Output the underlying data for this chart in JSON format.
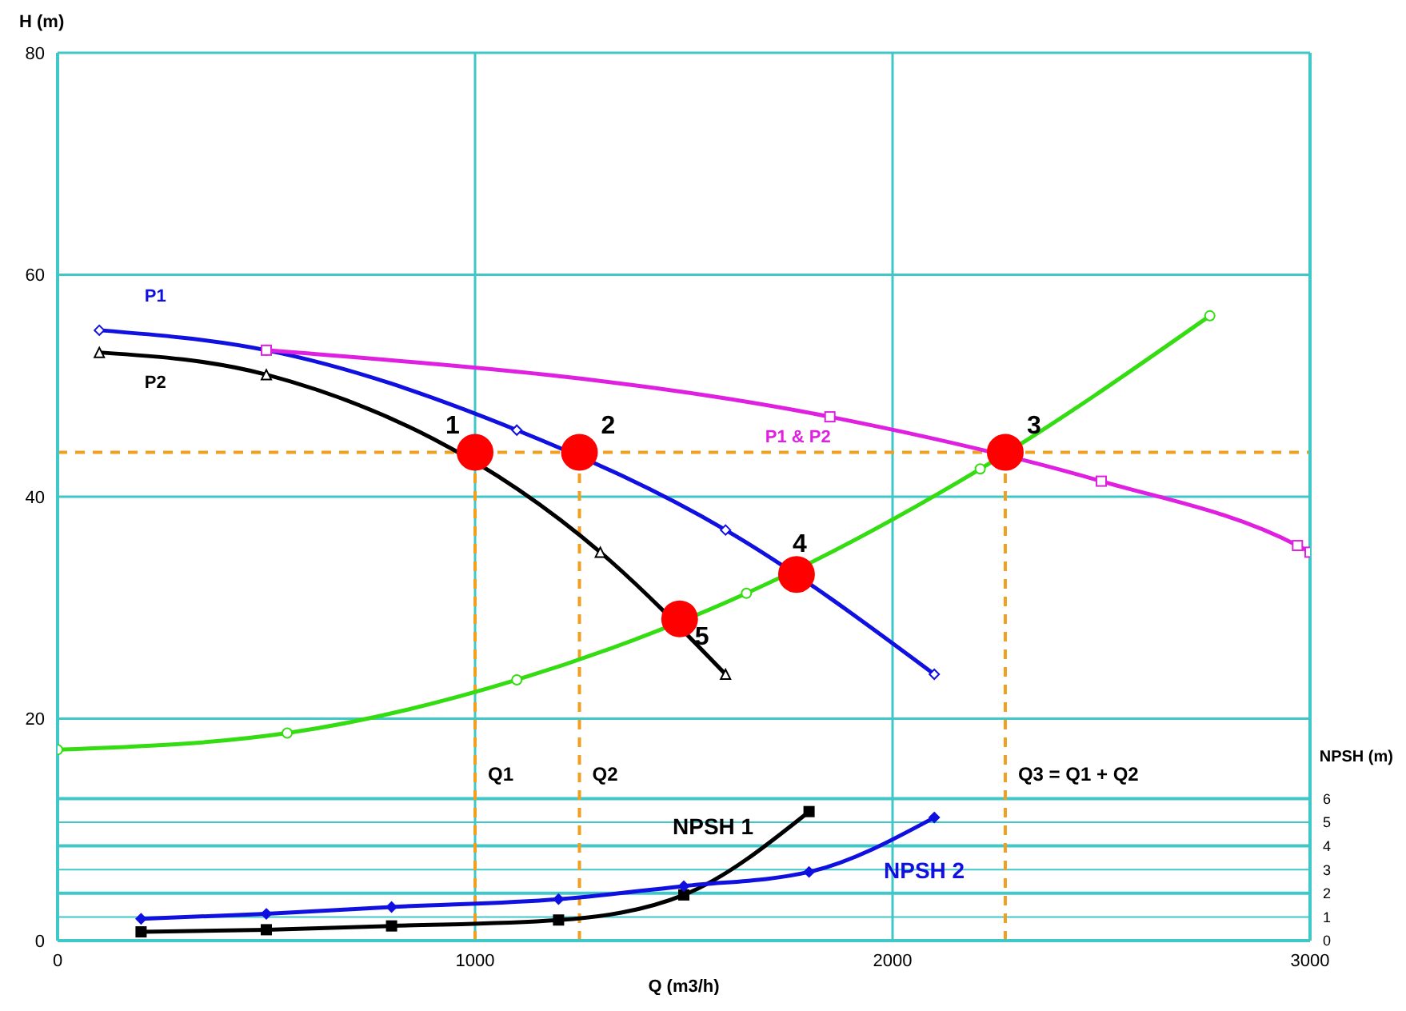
{
  "chart_data": {
    "type": "line",
    "xlabel": "Q (m3/h)",
    "ylabel": "H (m)",
    "y2label": "NPSH (m)",
    "xlim": [
      0,
      3000
    ],
    "xticks": [
      0,
      1000,
      2000,
      3000
    ],
    "ylim": [
      0,
      80
    ],
    "yticks": [
      0,
      20,
      40,
      60,
      80
    ],
    "y2lim": [
      0,
      37.5
    ],
    "y2ticks": [
      0,
      1,
      2,
      3,
      4,
      5,
      6
    ],
    "grid": true,
    "series": [
      {
        "name": "P1",
        "color": "#1010e0",
        "marker": "diamond",
        "x": [
          100,
          500,
          1100,
          1600,
          2100
        ],
        "values": [
          55,
          53.2,
          46,
          37,
          24
        ]
      },
      {
        "name": "P2",
        "color": "#000000",
        "marker": "triangle",
        "x": [
          100,
          500,
          1300,
          1600
        ],
        "values": [
          53,
          51,
          35,
          24
        ]
      },
      {
        "name": "P1 & P2",
        "color": "#e020e0",
        "marker": "square",
        "x": [
          500,
          1850,
          2500,
          2970,
          3000
        ],
        "values": [
          53.2,
          47.2,
          41.4,
          35.6,
          35
        ]
      },
      {
        "color": "#33dd11",
        "marker": "circle",
        "x": [
          0,
          550,
          1100,
          1650,
          2210,
          2760
        ],
        "values": [
          17.2,
          18.7,
          23.5,
          31.3,
          42.5,
          56.3
        ]
      },
      {
        "name": "NPSH 1",
        "color": "#000000",
        "marker": "square",
        "axis": "y2",
        "x": [
          200,
          500,
          800,
          1200,
          1500,
          1800
        ],
        "values": [
          0.37,
          0.46,
          0.62,
          0.87,
          1.93,
          5.45
        ]
      },
      {
        "name": "NPSH 2",
        "color": "#1010e0",
        "marker": "diamond",
        "axis": "y2",
        "x": [
          200,
          500,
          800,
          1200,
          1500,
          1800,
          2100
        ],
        "values": [
          0.92,
          1.13,
          1.42,
          1.75,
          2.3,
          2.9,
          5.2
        ]
      },
      {
        "type": "scatter",
        "color": "#ff0000",
        "marker": "circle",
        "x": [
          1000,
          1250,
          2270,
          1770,
          1490
        ],
        "values": [
          44,
          44,
          44,
          33,
          29
        ]
      }
    ],
    "ref_lines": [
      {
        "axis": "y",
        "value": 44,
        "color": "#f0a020",
        "line_style": "dashed"
      },
      {
        "axis": "x",
        "value": 1000,
        "label": "Q1",
        "color": "#f0a020",
        "line_style": "dashed"
      },
      {
        "axis": "x",
        "value": 1250,
        "label": "Q2",
        "color": "#f0a020",
        "line_style": "dashed"
      },
      {
        "axis": "x",
        "value": 2270,
        "label": "Q3 = Q1 + Q2",
        "color": "#f0a020",
        "line_style": "dashed"
      }
    ],
    "annotations": [
      {
        "text": "1",
        "x": 1000,
        "y": 44
      },
      {
        "text": "2",
        "x": 1250,
        "y": 44
      },
      {
        "text": "3",
        "x": 2270,
        "y": 44
      },
      {
        "text": "4",
        "x": 1770,
        "y": 33
      },
      {
        "text": "5",
        "x": 1490,
        "y": 29
      }
    ]
  }
}
